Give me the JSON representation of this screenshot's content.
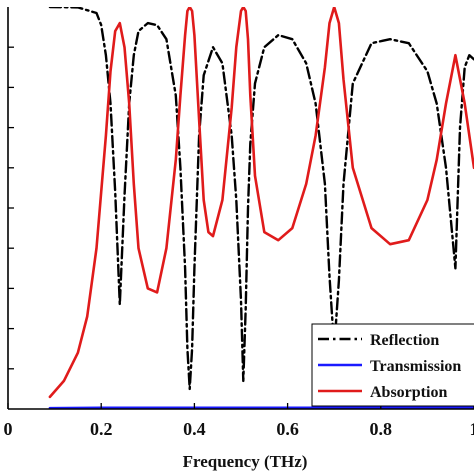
{
  "chart_data": {
    "type": "line",
    "xlabel": "Frequency (THz)",
    "ylabel": "",
    "xlim": [
      0.0,
      1.0
    ],
    "ylim": [
      0.0,
      1.0
    ],
    "x_ticks": [
      0.0,
      0.2,
      0.4,
      0.6,
      0.8,
      1.0
    ],
    "x_tick_labels": [
      "0",
      "0.2",
      "0.4",
      "0.6",
      "0.8",
      "1"
    ],
    "y_ticks": [
      0.1,
      0.2,
      0.3,
      0.4,
      0.5,
      0.6,
      0.7,
      0.8,
      0.9
    ],
    "grid": false,
    "legend": {
      "placement": "bottom-right"
    },
    "series": [
      {
        "name": "Reflection",
        "color": "#000000",
        "style": "dash-dot",
        "x": [
          0.09,
          0.15,
          0.19,
          0.2,
          0.21,
          0.22,
          0.23,
          0.24,
          0.25,
          0.26,
          0.27,
          0.28,
          0.3,
          0.32,
          0.34,
          0.36,
          0.37,
          0.38,
          0.385,
          0.39,
          0.395,
          0.4,
          0.41,
          0.42,
          0.44,
          0.46,
          0.48,
          0.49,
          0.5,
          0.505,
          0.51,
          0.515,
          0.52,
          0.53,
          0.55,
          0.58,
          0.61,
          0.64,
          0.66,
          0.68,
          0.69,
          0.7,
          0.71,
          0.72,
          0.74,
          0.78,
          0.82,
          0.86,
          0.9,
          0.92,
          0.94,
          0.96,
          0.97,
          0.98,
          0.99,
          1.0
        ],
        "y": [
          1.0,
          0.999,
          0.985,
          0.955,
          0.88,
          0.76,
          0.54,
          0.26,
          0.53,
          0.76,
          0.88,
          0.94,
          0.96,
          0.955,
          0.92,
          0.78,
          0.6,
          0.35,
          0.15,
          0.05,
          0.15,
          0.35,
          0.68,
          0.83,
          0.9,
          0.86,
          0.68,
          0.52,
          0.27,
          0.07,
          0.25,
          0.5,
          0.66,
          0.81,
          0.9,
          0.93,
          0.92,
          0.86,
          0.76,
          0.56,
          0.33,
          0.15,
          0.32,
          0.56,
          0.81,
          0.91,
          0.92,
          0.91,
          0.84,
          0.76,
          0.6,
          0.35,
          0.7,
          0.85,
          0.88,
          0.87
        ]
      },
      {
        "name": "Transmission",
        "color": "#1a1aff",
        "style": "solid",
        "x": [
          0.09,
          0.2,
          0.4,
          0.6,
          0.8,
          1.0
        ],
        "y": [
          0.002,
          0.003,
          0.003,
          0.003,
          0.003,
          0.003
        ]
      },
      {
        "name": "Absorption",
        "color": "#e01b1b",
        "style": "solid",
        "x": [
          0.09,
          0.12,
          0.15,
          0.17,
          0.19,
          0.2,
          0.21,
          0.22,
          0.23,
          0.24,
          0.25,
          0.26,
          0.27,
          0.28,
          0.3,
          0.32,
          0.34,
          0.36,
          0.37,
          0.38,
          0.385,
          0.39,
          0.395,
          0.4,
          0.41,
          0.42,
          0.43,
          0.44,
          0.46,
          0.48,
          0.49,
          0.5,
          0.505,
          0.51,
          0.515,
          0.52,
          0.53,
          0.55,
          0.58,
          0.61,
          0.64,
          0.66,
          0.68,
          0.69,
          0.7,
          0.71,
          0.72,
          0.74,
          0.78,
          0.82,
          0.86,
          0.9,
          0.92,
          0.94,
          0.96,
          0.98,
          1.0
        ],
        "y": [
          0.03,
          0.07,
          0.14,
          0.23,
          0.4,
          0.54,
          0.68,
          0.84,
          0.94,
          0.96,
          0.9,
          0.76,
          0.56,
          0.4,
          0.3,
          0.29,
          0.4,
          0.62,
          0.78,
          0.93,
          0.99,
          1.0,
          0.99,
          0.93,
          0.72,
          0.52,
          0.44,
          0.43,
          0.52,
          0.75,
          0.9,
          0.99,
          1.0,
          0.99,
          0.92,
          0.78,
          0.58,
          0.44,
          0.42,
          0.45,
          0.56,
          0.68,
          0.85,
          0.96,
          1.0,
          0.96,
          0.82,
          0.6,
          0.45,
          0.41,
          0.42,
          0.52,
          0.62,
          0.76,
          0.88,
          0.76,
          0.6
        ]
      }
    ]
  }
}
